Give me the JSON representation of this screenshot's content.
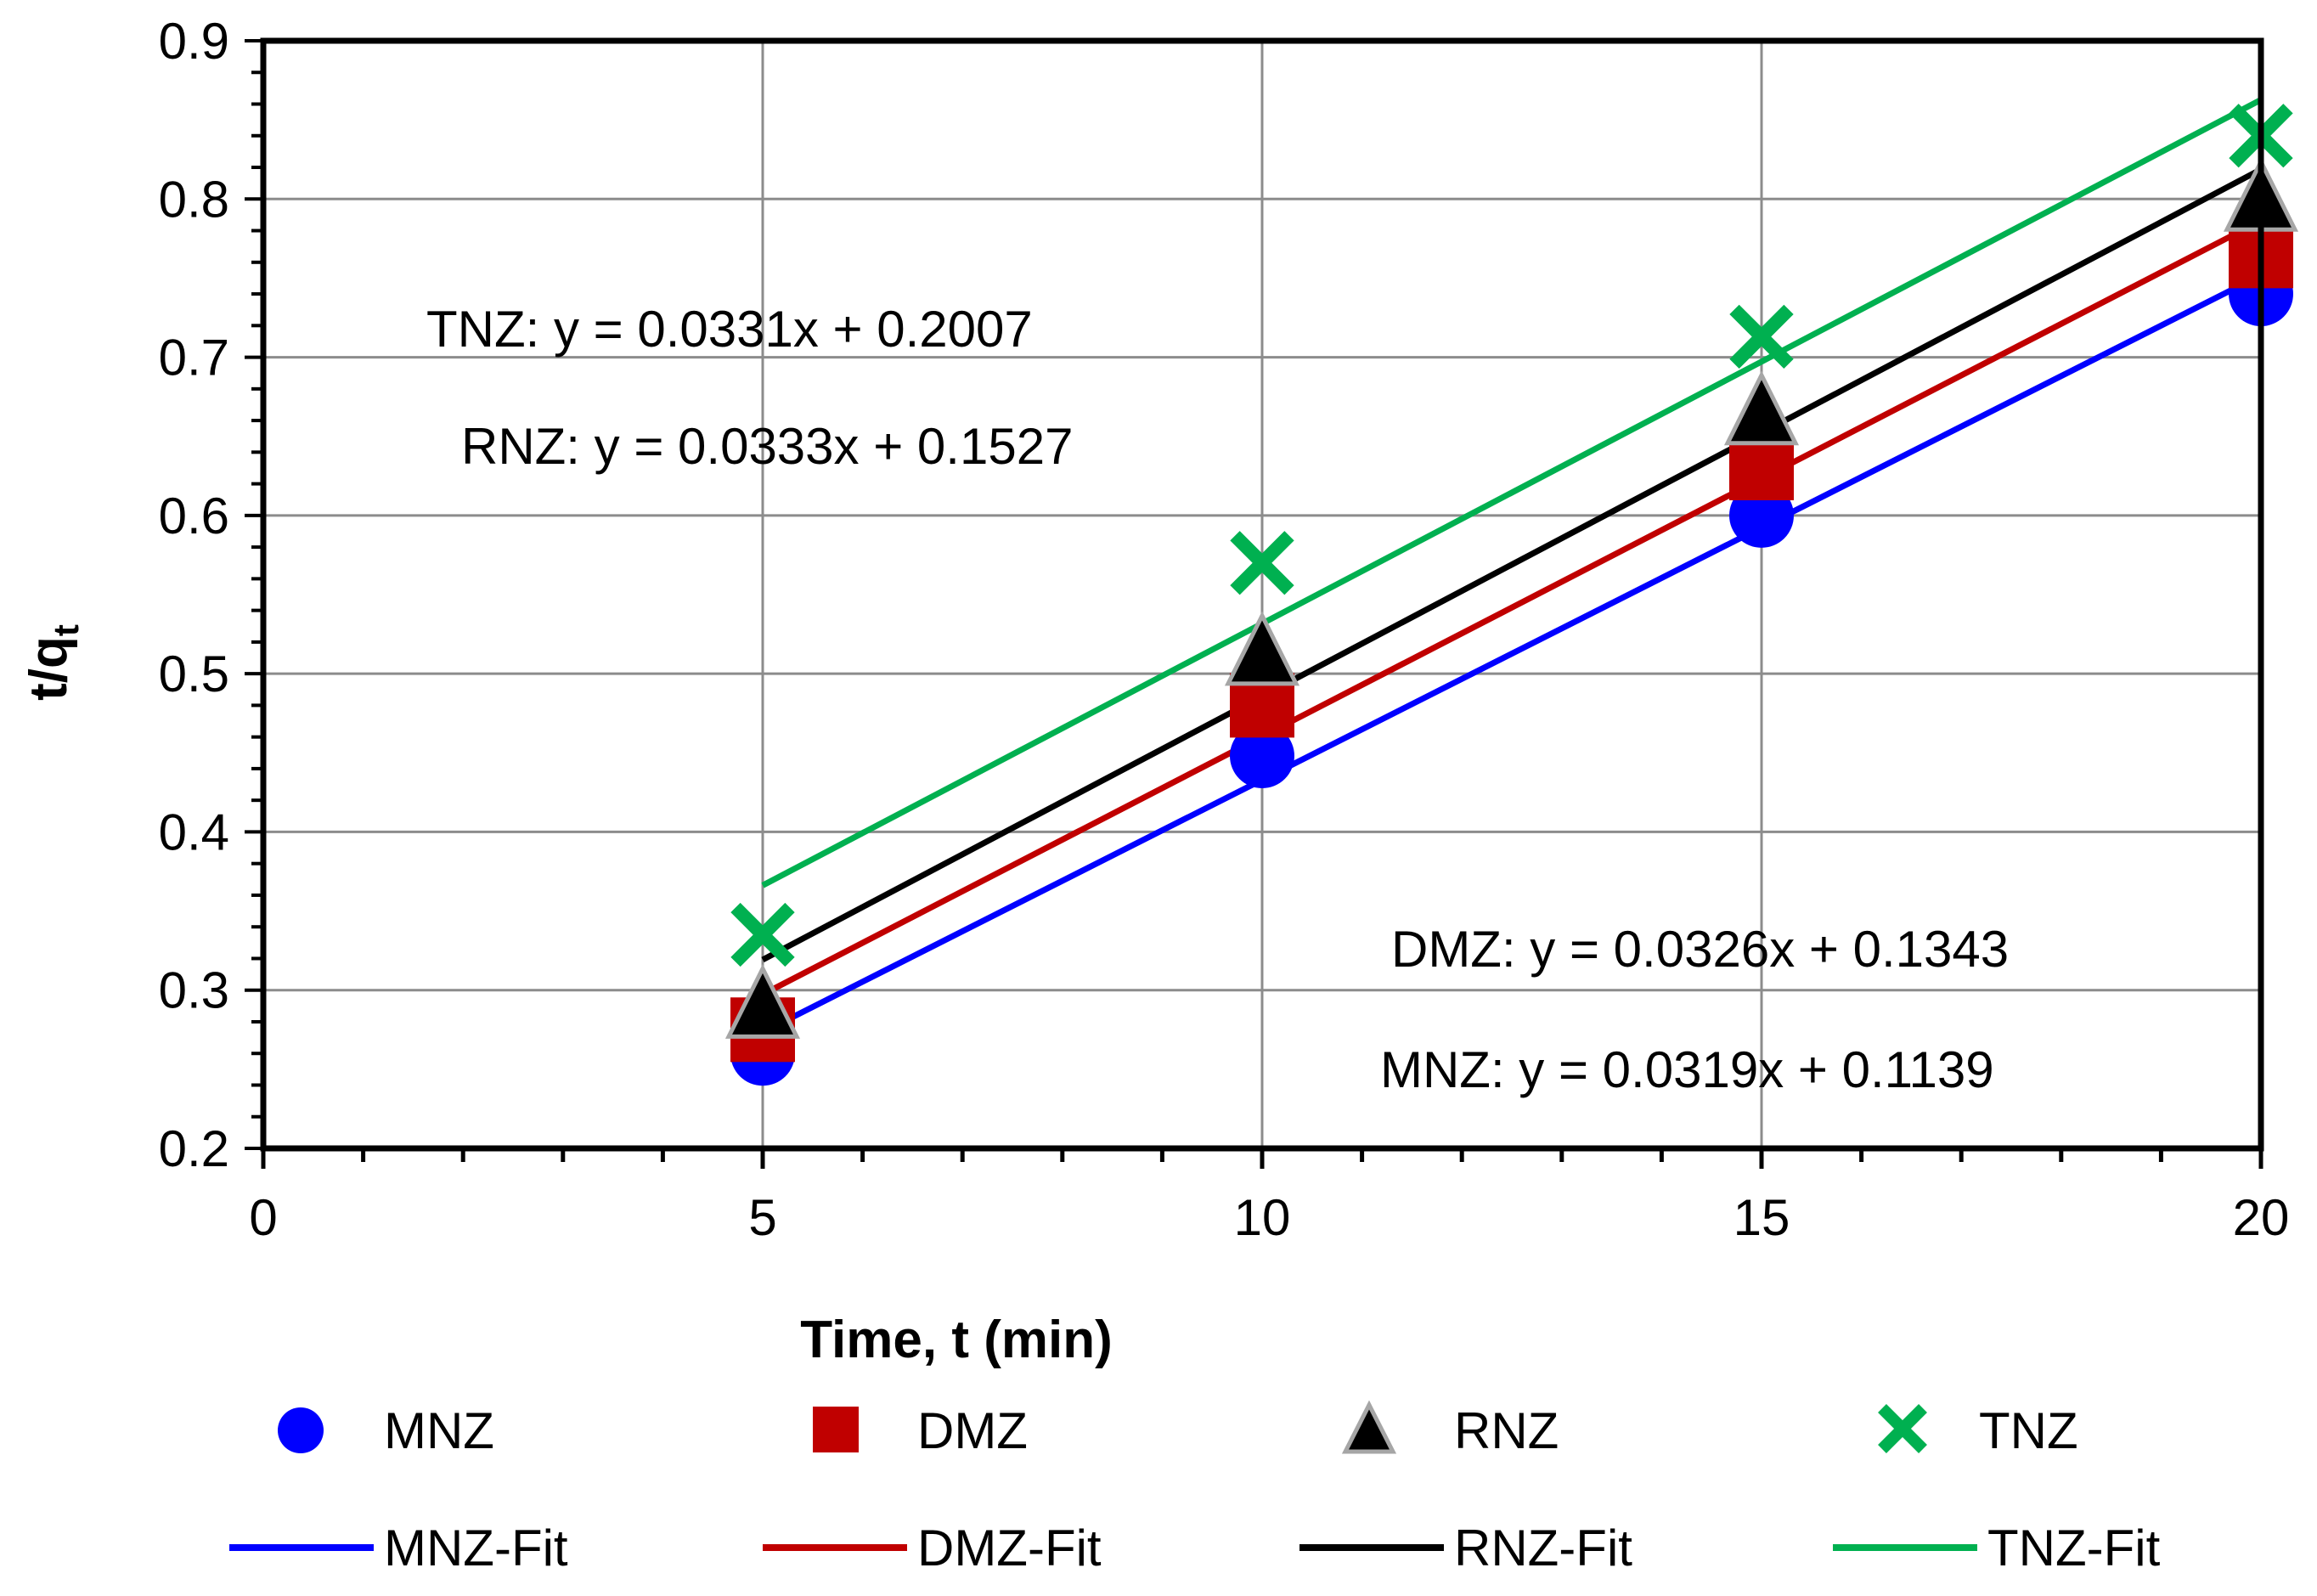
{
  "chart_data": {
    "type": "scatter",
    "title": "",
    "xlabel": "Time, t (min)",
    "ylabel_main": "t/q",
    "ylabel_sub": "t",
    "xlim": [
      0,
      20
    ],
    "ylim": [
      0.2,
      0.9
    ],
    "xticks": [
      0,
      5,
      10,
      15,
      20
    ],
    "xtick_labels": [
      "0",
      "5",
      "10",
      "15",
      "20"
    ],
    "yticks": [
      0.2,
      0.3,
      0.4,
      0.5,
      0.6,
      0.7,
      0.8,
      0.9
    ],
    "ytick_labels": [
      "0.2",
      "0.3",
      "0.4",
      "0.5",
      "0.6",
      "0.7",
      "0.8",
      "0.9"
    ],
    "grid": true,
    "series": [
      {
        "name": "MNZ",
        "marker": "circle",
        "color": "#0000ff",
        "x": [
          5,
          10,
          15,
          20
        ],
        "y": [
          0.26,
          0.448,
          0.6,
          0.74
        ]
      },
      {
        "name": "DMZ",
        "marker": "square",
        "color": "#c00000",
        "x": [
          5,
          10,
          15,
          20
        ],
        "y": [
          0.275,
          0.48,
          0.63,
          0.764
        ]
      },
      {
        "name": "RNZ",
        "marker": "triangle",
        "color": "#000000",
        "x": [
          5,
          10,
          15,
          20
        ],
        "y": [
          0.29,
          0.513,
          0.665,
          0.8
        ]
      },
      {
        "name": "TNZ",
        "marker": "x",
        "color": "#00b050",
        "x": [
          5,
          10,
          15,
          20
        ],
        "y": [
          0.335,
          0.57,
          0.713,
          0.84
        ]
      }
    ],
    "fits": [
      {
        "name": "MNZ-Fit",
        "color": "#0000ff",
        "slope": 0.0319,
        "intercept": 0.1139,
        "x_range": [
          5,
          20
        ]
      },
      {
        "name": "DMZ-Fit",
        "color": "#c00000",
        "slope": 0.0326,
        "intercept": 0.1343,
        "x_range": [
          5,
          20
        ]
      },
      {
        "name": "RNZ-Fit",
        "color": "#000000",
        "slope": 0.0333,
        "intercept": 0.1527,
        "x_range": [
          5,
          20
        ]
      },
      {
        "name": "TNZ-Fit",
        "color": "#00b050",
        "slope": 0.0331,
        "intercept": 0.2007,
        "x_range": [
          5,
          20
        ]
      }
    ],
    "annotations": [
      "TNZ: y = 0.0331x + 0.2007",
      "RNZ: y = 0.0333x + 0.1527",
      "DMZ: y = 0.0326x + 0.1343",
      "MNZ: y = 0.0319x + 0.1139"
    ],
    "legend_position": "bottom"
  }
}
